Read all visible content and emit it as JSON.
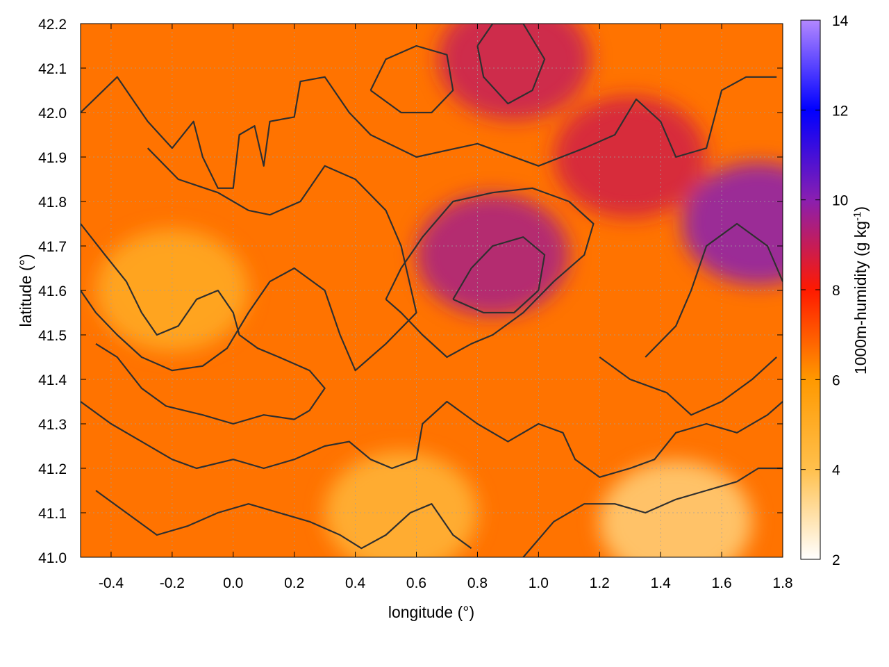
{
  "chart_data": {
    "type": "heatmap",
    "xlabel": "longitude (°)",
    "ylabel": "latitude (°)",
    "colorbar_label": "1000m-humidity (g kg",
    "colorbar_label_sup": "-1",
    "colorbar_label_end": ")",
    "xlim": [
      -0.5,
      1.8
    ],
    "ylim": [
      41.0,
      42.2
    ],
    "x_ticks": [
      "-0.4",
      "-0.2",
      "0.0",
      "0.2",
      "0.4",
      "0.6",
      "0.8",
      "1.0",
      "1.2",
      "1.4",
      "1.6",
      "1.8"
    ],
    "x_tick_values": [
      -0.4,
      -0.2,
      0.0,
      0.2,
      0.4,
      0.6,
      0.8,
      1.0,
      1.2,
      1.4,
      1.6,
      1.8
    ],
    "y_ticks": [
      "41.0",
      "41.1",
      "41.2",
      "41.3",
      "41.4",
      "41.5",
      "41.6",
      "41.7",
      "41.8",
      "41.9",
      "42.0",
      "42.1",
      "42.2"
    ],
    "y_tick_values": [
      41.0,
      41.1,
      41.2,
      41.3,
      41.4,
      41.5,
      41.6,
      41.7,
      41.8,
      41.9,
      42.0,
      42.1,
      42.2
    ],
    "colorbar_range": [
      2,
      14
    ],
    "colorbar_ticks": [
      "2",
      "4",
      "6",
      "8",
      "10",
      "12",
      "14"
    ],
    "colorbar_tick_values": [
      2,
      4,
      6,
      8,
      10,
      12,
      14
    ],
    "colormap_stops": [
      {
        "value": 2,
        "color": "#ffffff"
      },
      {
        "value": 4,
        "color": "#ffc04d"
      },
      {
        "value": 6,
        "color": "#ff9900"
      },
      {
        "value": 8,
        "color": "#ff1a00"
      },
      {
        "value": 10,
        "color": "#8a1fb0"
      },
      {
        "value": 12,
        "color": "#0000ff"
      },
      {
        "value": 14,
        "color": "#b388ff"
      }
    ],
    "grid": true,
    "features": [
      {
        "name": "moist core",
        "lon": 0.85,
        "lat": 41.68,
        "value": 9.5
      },
      {
        "name": "moist east edge",
        "lon": 1.72,
        "lat": 41.75,
        "value": 10.0
      },
      {
        "name": "moist north",
        "lon": 0.92,
        "lat": 42.12,
        "value": 9.0
      },
      {
        "name": "moist northeast",
        "lon": 1.3,
        "lat": 41.9,
        "value": 8.8
      },
      {
        "name": "dry southeast",
        "lon": 1.45,
        "lat": 41.08,
        "value": 3.5
      },
      {
        "name": "dry southwest",
        "lon": -0.2,
        "lat": 41.6,
        "value": 5.0
      },
      {
        "name": "dry south-central",
        "lon": 0.55,
        "lat": 41.1,
        "value": 4.5
      }
    ],
    "contour_lines": [
      [
        [
          -0.5,
          42.0
        ],
        [
          -0.38,
          42.08
        ],
        [
          -0.28,
          41.98
        ],
        [
          -0.2,
          41.92
        ],
        [
          -0.13,
          41.98
        ],
        [
          -0.1,
          41.9
        ],
        [
          -0.05,
          41.83
        ],
        [
          0.0,
          41.83
        ],
        [
          0.02,
          41.95
        ],
        [
          0.07,
          41.97
        ],
        [
          0.1,
          41.88
        ],
        [
          0.12,
          41.98
        ],
        [
          0.2,
          41.99
        ],
        [
          0.22,
          42.07
        ],
        [
          0.3,
          42.08
        ],
        [
          0.38,
          42.0
        ],
        [
          0.45,
          41.95
        ],
        [
          0.6,
          41.9
        ],
        [
          0.8,
          41.93
        ],
        [
          1.0,
          41.88
        ],
        [
          1.15,
          41.92
        ],
        [
          1.25,
          41.95
        ],
        [
          1.32,
          42.03
        ],
        [
          1.4,
          41.98
        ],
        [
          1.45,
          41.9
        ],
        [
          1.55,
          41.92
        ],
        [
          1.6,
          42.05
        ],
        [
          1.68,
          42.08
        ],
        [
          1.78,
          42.08
        ]
      ],
      [
        [
          -0.28,
          41.92
        ],
        [
          -0.18,
          41.85
        ],
        [
          -0.05,
          41.82
        ],
        [
          0.0,
          41.8
        ],
        [
          0.05,
          41.78
        ],
        [
          0.12,
          41.77
        ],
        [
          0.22,
          41.8
        ],
        [
          0.3,
          41.88
        ],
        [
          0.4,
          41.85
        ],
        [
          0.5,
          41.78
        ],
        [
          0.55,
          41.7
        ],
        [
          0.6,
          41.55
        ],
        [
          0.5,
          41.48
        ],
        [
          0.4,
          41.42
        ],
        [
          0.35,
          41.5
        ],
        [
          0.3,
          41.6
        ],
        [
          0.2,
          41.65
        ],
        [
          0.12,
          41.62
        ],
        [
          0.05,
          41.55
        ],
        [
          -0.02,
          41.47
        ],
        [
          -0.1,
          41.43
        ],
        [
          -0.2,
          41.42
        ],
        [
          -0.3,
          41.45
        ],
        [
          -0.38,
          41.5
        ],
        [
          -0.45,
          41.55
        ],
        [
          -0.5,
          41.6
        ]
      ],
      [
        [
          -0.5,
          41.75
        ],
        [
          -0.42,
          41.68
        ],
        [
          -0.35,
          41.62
        ],
        [
          -0.3,
          41.55
        ],
        [
          -0.25,
          41.5
        ],
        [
          -0.18,
          41.52
        ],
        [
          -0.12,
          41.58
        ],
        [
          -0.05,
          41.6
        ],
        [
          0.0,
          41.55
        ],
        [
          0.02,
          41.5
        ],
        [
          0.08,
          41.47
        ],
        [
          0.15,
          41.45
        ],
        [
          0.25,
          41.42
        ],
        [
          0.3,
          41.38
        ],
        [
          0.25,
          41.33
        ],
        [
          0.2,
          41.31
        ],
        [
          0.1,
          41.32
        ],
        [
          0.0,
          41.3
        ],
        [
          -0.1,
          41.32
        ],
        [
          -0.22,
          41.34
        ],
        [
          -0.3,
          41.38
        ],
        [
          -0.38,
          41.45
        ],
        [
          -0.45,
          41.48
        ]
      ],
      [
        [
          -0.5,
          41.35
        ],
        [
          -0.4,
          41.3
        ],
        [
          -0.3,
          41.26
        ],
        [
          -0.2,
          41.22
        ],
        [
          -0.12,
          41.2
        ],
        [
          0.0,
          41.22
        ],
        [
          0.1,
          41.2
        ],
        [
          0.2,
          41.22
        ],
        [
          0.3,
          41.25
        ],
        [
          0.38,
          41.26
        ],
        [
          0.45,
          41.22
        ],
        [
          0.52,
          41.2
        ],
        [
          0.6,
          41.22
        ],
        [
          0.62,
          41.3
        ],
        [
          0.7,
          41.35
        ],
        [
          0.8,
          41.3
        ],
        [
          0.9,
          41.26
        ],
        [
          1.0,
          41.3
        ],
        [
          1.08,
          41.28
        ],
        [
          1.12,
          41.22
        ],
        [
          1.2,
          41.18
        ],
        [
          1.3,
          41.2
        ],
        [
          1.38,
          41.22
        ],
        [
          1.45,
          41.28
        ],
        [
          1.55,
          41.3
        ],
        [
          1.65,
          41.28
        ],
        [
          1.75,
          41.32
        ],
        [
          1.8,
          41.35
        ]
      ],
      [
        [
          -0.45,
          41.15
        ],
        [
          -0.35,
          41.1
        ],
        [
          -0.25,
          41.05
        ],
        [
          -0.15,
          41.07
        ],
        [
          -0.05,
          41.1
        ],
        [
          0.05,
          41.12
        ],
        [
          0.15,
          41.1
        ],
        [
          0.25,
          41.08
        ],
        [
          0.35,
          41.05
        ],
        [
          0.42,
          41.02
        ],
        [
          0.5,
          41.05
        ],
        [
          0.58,
          41.1
        ],
        [
          0.65,
          41.12
        ],
        [
          0.72,
          41.05
        ],
        [
          0.78,
          41.02
        ]
      ],
      [
        [
          0.95,
          41.0
        ],
        [
          1.05,
          41.08
        ],
        [
          1.15,
          41.12
        ],
        [
          1.25,
          41.12
        ],
        [
          1.35,
          41.1
        ],
        [
          1.45,
          41.13
        ],
        [
          1.55,
          41.15
        ],
        [
          1.65,
          41.17
        ],
        [
          1.72,
          41.2
        ],
        [
          1.8,
          41.2
        ]
      ],
      [
        [
          0.5,
          41.58
        ],
        [
          0.55,
          41.65
        ],
        [
          0.62,
          41.72
        ],
        [
          0.72,
          41.8
        ],
        [
          0.85,
          41.82
        ],
        [
          0.98,
          41.83
        ],
        [
          1.1,
          41.8
        ],
        [
          1.18,
          41.75
        ],
        [
          1.15,
          41.68
        ],
        [
          1.05,
          41.62
        ],
        [
          0.95,
          41.55
        ],
        [
          0.85,
          41.5
        ],
        [
          0.78,
          41.48
        ],
        [
          0.7,
          41.45
        ],
        [
          0.62,
          41.5
        ],
        [
          0.55,
          41.55
        ],
        [
          0.5,
          41.58
        ]
      ],
      [
        [
          0.72,
          41.58
        ],
        [
          0.78,
          41.65
        ],
        [
          0.85,
          41.7
        ],
        [
          0.95,
          41.72
        ],
        [
          1.02,
          41.68
        ],
        [
          1.0,
          41.6
        ],
        [
          0.92,
          41.55
        ],
        [
          0.82,
          41.55
        ],
        [
          0.72,
          41.58
        ]
      ],
      [
        [
          0.45,
          42.05
        ],
        [
          0.5,
          42.12
        ],
        [
          0.6,
          42.15
        ],
        [
          0.7,
          42.13
        ],
        [
          0.72,
          42.05
        ],
        [
          0.65,
          42.0
        ],
        [
          0.55,
          42.0
        ],
        [
          0.45,
          42.05
        ]
      ],
      [
        [
          0.8,
          42.15
        ],
        [
          0.85,
          42.2
        ],
        [
          0.95,
          42.2
        ],
        [
          1.02,
          42.12
        ],
        [
          0.98,
          42.05
        ],
        [
          0.9,
          42.02
        ],
        [
          0.82,
          42.08
        ],
        [
          0.8,
          42.15
        ]
      ],
      [
        [
          1.35,
          41.45
        ],
        [
          1.45,
          41.52
        ],
        [
          1.5,
          41.6
        ],
        [
          1.55,
          41.7
        ],
        [
          1.65,
          41.75
        ],
        [
          1.75,
          41.7
        ],
        [
          1.8,
          41.62
        ]
      ],
      [
        [
          1.2,
          41.45
        ],
        [
          1.3,
          41.4
        ],
        [
          1.42,
          41.37
        ],
        [
          1.5,
          41.32
        ],
        [
          1.6,
          41.35
        ],
        [
          1.7,
          41.4
        ],
        [
          1.78,
          41.45
        ]
      ]
    ]
  }
}
